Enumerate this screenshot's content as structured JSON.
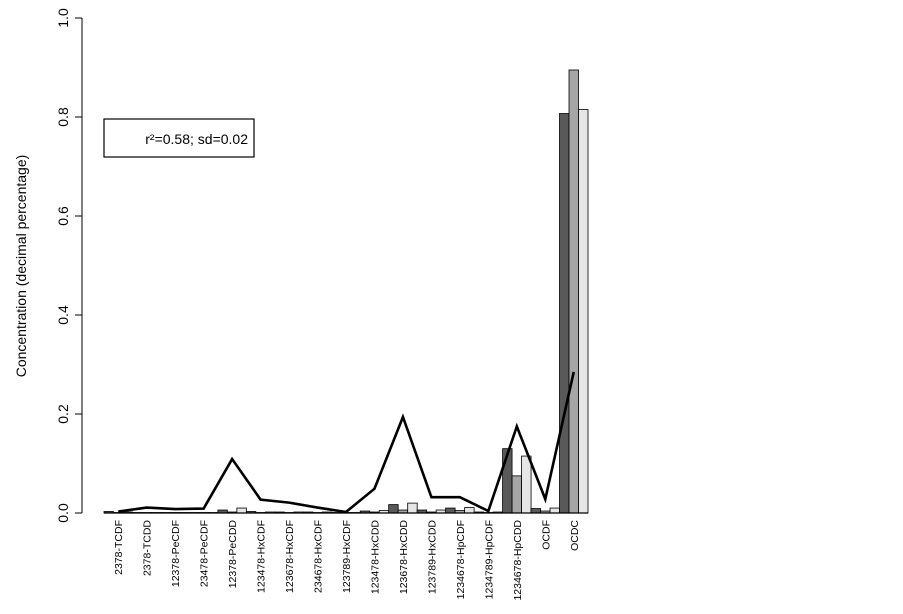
{
  "chart_data": {
    "type": "bar",
    "ylabel": "Concentration (decimal percentage)",
    "ylim": [
      0,
      1.0
    ],
    "yticks": [
      "0.0",
      "0.2",
      "0.4",
      "0.6",
      "0.8",
      "1.0"
    ],
    "categories": [
      "2378-TCDF",
      "2378-TCDD",
      "12378-PeCDF",
      "23478-PeCDF",
      "12378-PeCDD",
      "123478-HxCDF",
      "123678-HxCDF",
      "234678-HxCDF",
      "123789-HxCDF",
      "123478-HxCDD",
      "123678-HxCDD",
      "123789-HxCDD",
      "1234678-HpCDF",
      "1234789-HpCDF",
      "1234678-HpCDD",
      "OCDF",
      "OCDC"
    ],
    "series": [
      {
        "type": "bar",
        "color": "#595959",
        "values": [
          0.003,
          0.001,
          0.001,
          0.001,
          0.006,
          0.003,
          0.002,
          0.002,
          0.001,
          0.004,
          0.017,
          0.006,
          0.01,
          0.002,
          0.13,
          0.009,
          0.807
        ]
      },
      {
        "type": "bar",
        "color": "#a6a6a6",
        "values": [
          0.001,
          0.001,
          0.001,
          0.001,
          0.002,
          0.001,
          0.001,
          0.001,
          0.001,
          0.002,
          0.006,
          0.002,
          0.005,
          0.001,
          0.075,
          0.004,
          0.895
        ]
      },
      {
        "type": "bar",
        "color": "#e6e6e6",
        "values": [
          0.002,
          0.001,
          0.001,
          0.001,
          0.01,
          0.002,
          0.002,
          0.002,
          0.001,
          0.005,
          0.02,
          0.006,
          0.011,
          0.002,
          0.115,
          0.01,
          0.815
        ]
      },
      {
        "type": "line",
        "color": "#000000",
        "values": [
          0.003,
          0.011,
          0.008,
          0.009,
          0.109,
          0.027,
          0.021,
          0.011,
          0.002,
          0.049,
          0.194,
          0.032,
          0.032,
          0.004,
          0.175,
          0.028,
          0.285
        ]
      }
    ],
    "legend": {
      "placement": "top-left",
      "text": "r²=0.58; sd=0.02"
    },
    "grid": false
  }
}
